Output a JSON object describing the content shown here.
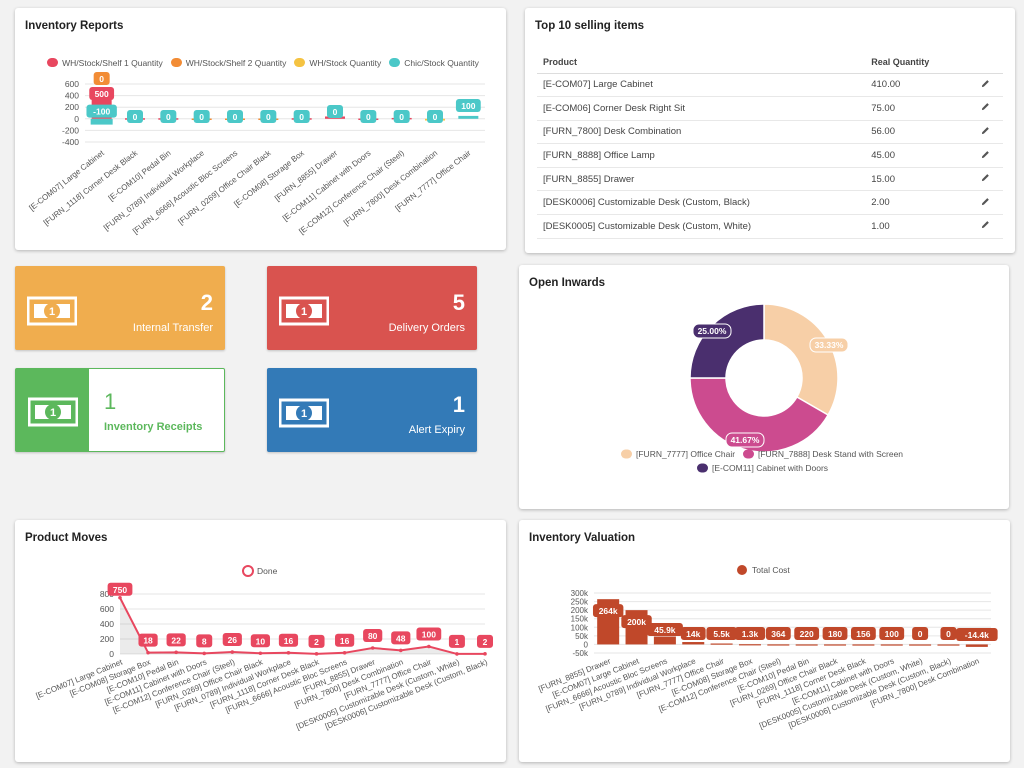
{
  "inventory_reports": {
    "title": "Inventory Reports",
    "legend": [
      {
        "label": "WH/Stock/Shelf 1 Quantity",
        "color": "#e8475f"
      },
      {
        "label": "WH/Stock/Shelf 2 Quantity",
        "color": "#f28c35"
      },
      {
        "label": "WH/Stock Quantity",
        "color": "#f5c342"
      },
      {
        "label": "Chic/Stock Quantity",
        "color": "#4bc8c8"
      }
    ]
  },
  "top_selling": {
    "title": "Top 10 selling items",
    "columns": [
      "Product",
      "Real Quantity"
    ],
    "rows": [
      {
        "product": "[E-COM07] Large Cabinet",
        "qty": "410.00"
      },
      {
        "product": "[E-COM06] Corner Desk Right Sit",
        "qty": "75.00"
      },
      {
        "product": "[FURN_7800] Desk Combination",
        "qty": "56.00"
      },
      {
        "product": "[FURN_8888] Office Lamp",
        "qty": "45.00"
      },
      {
        "product": "[FURN_8855] Drawer",
        "qty": "15.00"
      },
      {
        "product": "[DESK0006] Customizable Desk (Custom, Black)",
        "qty": "2.00"
      },
      {
        "product": "[DESK0005] Customizable Desk (Custom, White)",
        "qty": "1.00"
      }
    ]
  },
  "kpis": {
    "internal_transfer": {
      "value": "2",
      "label": "Internal Transfer",
      "color": "#f0ad4e"
    },
    "delivery_orders": {
      "value": "5",
      "label": "Delivery Orders",
      "color": "#d9534f"
    },
    "inventory_receipts": {
      "value": "1",
      "label": "Inventory Receipts",
      "color": "#5cb85c"
    },
    "alert_expiry": {
      "value": "1",
      "label": "Alert Expiry",
      "color": "#337ab7"
    }
  },
  "open_inwards": {
    "title": "Open Inwards"
  },
  "product_moves": {
    "title": "Product Moves"
  },
  "inventory_valuation": {
    "title": "Inventory Valuation"
  },
  "chart_data": [
    {
      "id": "inventory_reports",
      "type": "bar",
      "title": "Inventory Reports",
      "categories": [
        "[E-COM07] Large Cabinet",
        "[FURN_1118] Corner Desk Black",
        "[E-COM10] Pedal Bin",
        "[FURN_0789] Individual Workplace",
        "[FURN_6666] Acoustic Bloc Screens",
        "[FURN_0269] Office Chair Black",
        "[E-COM08] Storage Box",
        "[FURN_8855] Drawer",
        "[E-COM11] Cabinet with Doors",
        "[E-COM12] Conference Chair (Steel)",
        "[FURN_7800] Desk Combination",
        "[FURN_7777] Office Chair"
      ],
      "series": [
        {
          "name": "WH/Stock/Shelf 1 Quantity",
          "color": "#e8475f",
          "values": [
            500,
            0,
            0,
            0,
            0,
            0,
            0,
            0,
            0,
            0,
            0,
            0
          ]
        },
        {
          "name": "WH/Stock/Shelf 2 Quantity",
          "color": "#f28c35",
          "values": [
            0,
            0,
            0,
            0,
            0,
            0,
            0,
            0,
            0,
            0,
            0,
            0
          ]
        },
        {
          "name": "WH/Stock Quantity",
          "color": "#f5c342",
          "values": [
            0,
            0,
            0,
            0,
            0,
            0,
            0,
            0,
            0,
            0,
            0,
            0
          ]
        },
        {
          "name": "Chic/Stock Quantity",
          "color": "#4bc8c8",
          "values": [
            -100,
            0,
            0,
            0,
            0,
            0,
            0,
            0,
            0,
            0,
            0,
            100
          ]
        }
      ],
      "bar_values": [
        500,
        10,
        10,
        5,
        5,
        5,
        10,
        40,
        5,
        15,
        -30,
        50
      ],
      "bar_colors": [
        "#e8475f",
        "#e8475f",
        "#e8475f",
        "#f28c35",
        "#f28c35",
        "#f28c35",
        "#e8475f",
        "#e8475f",
        "#e8475f",
        "#e8475f",
        "#f5c342",
        "#4bc8c8"
      ],
      "neg_value": -100,
      "labels": [
        "500",
        "0",
        "0",
        "0",
        "0",
        "0",
        "0",
        "0",
        "0",
        "0",
        "0",
        "100"
      ],
      "label_colors": [
        "#e8475f",
        "#4bc8c8",
        "#4bc8c8",
        "#4bc8c8",
        "#4bc8c8",
        "#4bc8c8",
        "#4bc8c8",
        "#4bc8c8",
        "#4bc8c8",
        "#4bc8c8",
        "#4bc8c8",
        "#4bc8c8"
      ],
      "top_label": "0",
      "neg_label": "-100",
      "yticks": [
        600,
        400,
        200,
        0,
        -200,
        -400
      ],
      "ylim": [
        -400,
        600
      ]
    },
    {
      "id": "open_inwards",
      "type": "pie",
      "title": "Open Inwards",
      "slices": [
        {
          "name": "[FURN_7777] Office Chair",
          "pct": 33.33,
          "label": "33.33%",
          "color": "#f7cfa7"
        },
        {
          "name": "[FURN_7888] Desk Stand with Screen",
          "pct": 41.67,
          "label": "41.67%",
          "color": "#cc4b8f"
        },
        {
          "name": "[E-COM11] Cabinet with Doors",
          "pct": 25.0,
          "label": "25.00%",
          "color": "#4a2f6e"
        }
      ]
    },
    {
      "id": "product_moves",
      "type": "line",
      "title": "Product Moves",
      "series_name": "Done",
      "color": "#e8475f",
      "categories": [
        "[E-COM07] Large Cabinet",
        "[E-COM08] Storage Box",
        "[E-COM10] Pedal Bin",
        "[E-COM11] Cabinet with Doors",
        "[E-COM12] Conference Chair (Steel)",
        "[FURN_0269] Office Chair Black",
        "[FURN_0789] Individual Workplace",
        "[FURN_1118] Corner Desk Black",
        "[FURN_6666] Acoustic Bloc Screens",
        "[FURN_8855] Drawer",
        "[FURN_7800] Desk Combination",
        "[FURN_7777] Office Chair",
        "[DESK0005] Customizable Desk (Custom, White)",
        "[DESK0006] Customizable Desk (Custom, Black)"
      ],
      "values": [
        750,
        18,
        22,
        8,
        26,
        10,
        16,
        2,
        16,
        80,
        48,
        100,
        1,
        2
      ],
      "yticks": [
        800,
        600,
        400,
        200,
        0
      ],
      "ylim": [
        0,
        800
      ]
    },
    {
      "id": "inventory_valuation",
      "type": "bar",
      "title": "Inventory Valuation",
      "series_name": "Total Cost",
      "color": "#c0482a",
      "categories": [
        "[FURN_8855] Drawer",
        "[E-COM07] Large Cabinet",
        "[FURN_6666] Acoustic Bloc Screens",
        "[FURN_0789] Individual Workplace",
        "[FURN_7777] Office Chair",
        "[E-COM08] Storage Box",
        "[E-COM12] Conference Chair (Steel)",
        "[E-COM10] Pedal Bin",
        "[FURN_0269] Office Chair Black",
        "[FURN_1118] Corner Desk Black",
        "[E-COM11] Cabinet with Doors",
        "[DESK0005] Customizable Desk (Custom, White)",
        "[DESK0006] Customizable Desk (Custom, Black)",
        "[FURN_7800] Desk Combination"
      ],
      "values": [
        264000,
        200000,
        45900,
        14000,
        5500,
        1300,
        364,
        220,
        180,
        156,
        100,
        0,
        0,
        -14400
      ],
      "labels": [
        "264k",
        "200k",
        "45.9k",
        "14k",
        "5.5k",
        "1.3k",
        "364",
        "220",
        "180",
        "156",
        "100",
        "0",
        "0",
        "-14.4k"
      ],
      "yticks": [
        "300k",
        "250k",
        "200k",
        "150k",
        "100k",
        "50k",
        "0",
        "-50k"
      ],
      "ylim": [
        -50000,
        300000
      ]
    }
  ]
}
